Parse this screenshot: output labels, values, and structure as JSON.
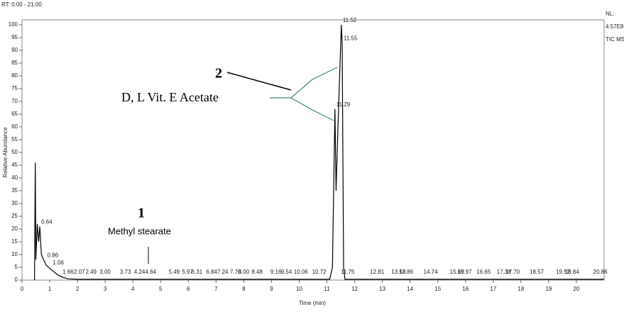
{
  "chart_data": {
    "type": "line",
    "header_left": "RT: 0.00 - 21.00",
    "header_right": [
      "NL:",
      "4.57E8",
      "TIC MS"
    ],
    "x_label": "Time (min)",
    "y_label": "Relative Abundance",
    "color": "#000000",
    "xlim": [
      0,
      21
    ],
    "ylim": [
      0,
      100
    ],
    "xticks": [
      0,
      1,
      2,
      3,
      4,
      5,
      6,
      7,
      8,
      9,
      10,
      11,
      12,
      13,
      14,
      15,
      16,
      17,
      18,
      19,
      20
    ],
    "yticks": [
      0,
      5,
      10,
      15,
      20,
      25,
      30,
      35,
      40,
      45,
      50,
      55,
      60,
      65,
      70,
      75,
      80,
      85,
      90,
      95,
      100
    ],
    "x": [
      0.45,
      0.48,
      0.5,
      0.55,
      0.6,
      0.64,
      0.7,
      0.86,
      1.06,
      1.3,
      1.5,
      1.66,
      2,
      11.1,
      11.2,
      11.25,
      11.29,
      11.33,
      11.4,
      11.52,
      11.55,
      11.6,
      11.65,
      21
    ],
    "values": [
      0,
      46,
      8,
      22,
      15,
      21,
      10,
      6,
      4,
      2,
      1,
      0.5,
      0.3,
      0.3,
      5,
      40,
      67,
      35,
      60,
      100,
      93,
      5,
      0.3,
      0.3
    ],
    "peak_labels": [
      {
        "rt": 0.64,
        "abundance": 21
      },
      {
        "rt": 0.86,
        "abundance": 8
      },
      {
        "rt": 1.06,
        "abundance": 5
      },
      {
        "rt": 11.29,
        "abundance": 67
      },
      {
        "rt": 11.52,
        "abundance": 100
      },
      {
        "rt": 11.55,
        "abundance": 93
      }
    ],
    "rt_labels": [
      1.66,
      2.07,
      2.49,
      {
        "value": 3,
        "label": "3.00"
      },
      3.73,
      4.24,
      4.64,
      5.49,
      5.97,
      6.31,
      6.84,
      7.24,
      {
        "value": 7.7,
        "label": "7.70"
      },
      {
        "value": 8,
        "label": "8.00"
      },
      8.48,
      9.16,
      9.54,
      10.06,
      10.72,
      11.75,
      12.81,
      13.58,
      13.86,
      14.74,
      15.69,
      15.97,
      16.65,
      17.38,
      {
        "value": 17.7,
        "label": "17.70"
      },
      18.57,
      19.52,
      19.84,
      20.86
    ],
    "annotations": [
      "2",
      "D, L Vit. E Acetate",
      "1",
      "Methyl stearate"
    ]
  }
}
